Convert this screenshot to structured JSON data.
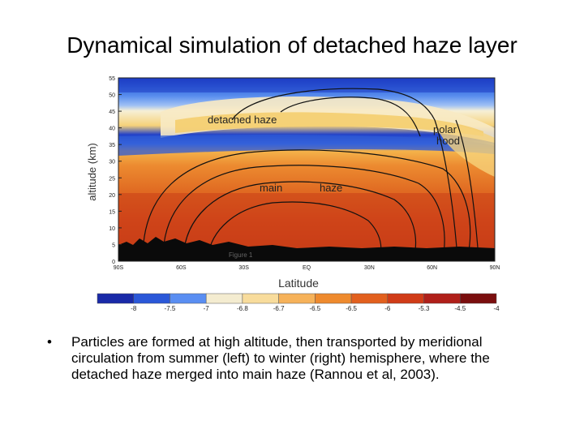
{
  "slide": {
    "title": "Dynamical simulation of detached haze layer",
    "bullet_marker": "•",
    "bullet_text": "Particles are formed at high altitude, then transported by meridional circulation from summer (left) to winter (right) hemisphere, where the detached haze merged into main haze (Rannou et al, 2003)."
  },
  "figure": {
    "ylabel": "altitude (km)",
    "xlabel": "Latitude",
    "y_ticks": [
      "55",
      "50",
      "45",
      "40",
      "35",
      "30",
      "25",
      "20",
      "15",
      "10",
      "5",
      "0"
    ],
    "x_ticks": [
      "90S",
      "60S",
      "30S",
      "EQ",
      "30N",
      "60N",
      "90N"
    ],
    "annotations": {
      "detached": "detached haze",
      "polar1": "polar",
      "polar2": "hood",
      "main1": "main",
      "main2": "haze",
      "figure_label": "Figure 1"
    },
    "colorbar": {
      "labels": [
        "-8",
        "-7.5",
        "-7",
        "-6.8",
        "-6.7",
        "-6.5",
        "-6.5",
        "-6",
        "-5.3",
        "-4.5",
        "-4"
      ],
      "colors": [
        "#1a2aa8",
        "#2b58d8",
        "#5a8ef2",
        "#f4ecd0",
        "#f8dc9c",
        "#f6b25a",
        "#ee8a2e",
        "#e2601e",
        "#d03c18",
        "#b0201a",
        "#7a0e0e"
      ]
    },
    "colors": {
      "upper_dark_blue": "#1e3cc4",
      "upper_light_blue": "#4f86ea",
      "detached_cream": "#f6efd6",
      "detached_yellow": "#f6d27a",
      "orange": "#ec8a30",
      "red_orange": "#d8501e",
      "red": "#c43a16",
      "contour": "#111111",
      "surface": "#0a0a0a"
    }
  }
}
